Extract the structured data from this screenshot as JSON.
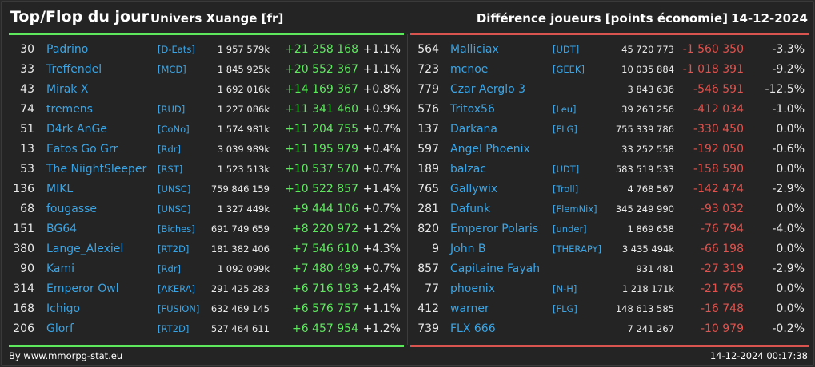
{
  "header": {
    "title": "Top/Flop du jour",
    "universe": "Univers Xuange [fr]",
    "metric": "Différence joueurs [points économie]",
    "date": "14-12-2024"
  },
  "colors": {
    "positive": "#5ee85e",
    "negative": "#e0524d",
    "link": "#3aa5e6"
  },
  "top": [
    {
      "rank": "30",
      "name": "Padrino",
      "alliance": "[D-Eats]",
      "points": "1 957 579k",
      "diff": "+21 258 168",
      "pct": "+1.1%"
    },
    {
      "rank": "33",
      "name": "Treffendel",
      "alliance": "[MCD]",
      "points": "1 845 925k",
      "diff": "+20 552 367",
      "pct": "+1.1%"
    },
    {
      "rank": "43",
      "name": "Mirak X",
      "alliance": "",
      "points": "1 692 016k",
      "diff": "+14 169 367",
      "pct": "+0.8%"
    },
    {
      "rank": "74",
      "name": "tremens",
      "alliance": "[RUD]",
      "points": "1 227 086k",
      "diff": "+11 341 460",
      "pct": "+0.9%"
    },
    {
      "rank": "51",
      "name": "D4rk AnGe",
      "alliance": "[CoNo]",
      "points": "1 574 981k",
      "diff": "+11 204 755",
      "pct": "+0.7%"
    },
    {
      "rank": "13",
      "name": "Eatos Go Grr",
      "alliance": "[Rdr]",
      "points": "3 039 989k",
      "diff": "+11 195 979",
      "pct": "+0.4%"
    },
    {
      "rank": "53",
      "name": "The NiightSleeper",
      "alliance": "[RST]",
      "points": "1 523 513k",
      "diff": "+10 537 570",
      "pct": "+0.7%"
    },
    {
      "rank": "136",
      "name": "MIKL",
      "alliance": "[UNSC]",
      "points": "759 846 159",
      "diff": "+10 522 857",
      "pct": "+1.4%"
    },
    {
      "rank": "68",
      "name": "fougasse",
      "alliance": "[UNSC]",
      "points": "1 327 449k",
      "diff": "+9 444 106",
      "pct": "+0.7%"
    },
    {
      "rank": "151",
      "name": "BG64",
      "alliance": "[Biches]",
      "points": "691 749 659",
      "diff": "+8 220 972",
      "pct": "+1.2%"
    },
    {
      "rank": "380",
      "name": "Lange_Alexiel",
      "alliance": "[RT2D]",
      "points": "181 382 406",
      "diff": "+7 546 610",
      "pct": "+4.3%"
    },
    {
      "rank": "90",
      "name": "Kami",
      "alliance": "[Rdr]",
      "points": "1 092 099k",
      "diff": "+7 480 499",
      "pct": "+0.7%"
    },
    {
      "rank": "314",
      "name": "Emperor Owl",
      "alliance": "[AKERA]",
      "points": "291 425 283",
      "diff": "+6 716 193",
      "pct": "+2.4%"
    },
    {
      "rank": "168",
      "name": "Ichigo",
      "alliance": "[FUSION]",
      "points": "632 469 145",
      "diff": "+6 576 757",
      "pct": "+1.1%"
    },
    {
      "rank": "206",
      "name": "Glorf",
      "alliance": "[RT2D]",
      "points": "527 464 611",
      "diff": "+6 457 954",
      "pct": "+1.2%"
    }
  ],
  "flop": [
    {
      "rank": "564",
      "name": "Malliciax",
      "alliance": "[UDT]",
      "points": "45 720 773",
      "diff": "-1 560 350",
      "pct": "-3.3%"
    },
    {
      "rank": "723",
      "name": "mcnoe",
      "alliance": "[GEEK]",
      "points": "10 035 884",
      "diff": "-1 018 391",
      "pct": "-9.2%"
    },
    {
      "rank": "779",
      "name": "Czar Aerglo 3",
      "alliance": "",
      "points": "3 843 636",
      "diff": "-546 591",
      "pct": "-12.5%"
    },
    {
      "rank": "576",
      "name": "Tritox56",
      "alliance": "[Leu]",
      "points": "39 263 256",
      "diff": "-412 034",
      "pct": "-1.0%"
    },
    {
      "rank": "137",
      "name": "Darkana",
      "alliance": "[FLG]",
      "points": "755 339 786",
      "diff": "-330 450",
      "pct": "0.0%"
    },
    {
      "rank": "597",
      "name": "Angel Phoenix",
      "alliance": "",
      "points": "33 252 558",
      "diff": "-192 050",
      "pct": "-0.6%"
    },
    {
      "rank": "189",
      "name": "balzac",
      "alliance": "[UDT]",
      "points": "583 519 533",
      "diff": "-158 590",
      "pct": "0.0%"
    },
    {
      "rank": "765",
      "name": "Gallywix",
      "alliance": "[Troll]",
      "points": "4 768 567",
      "diff": "-142 474",
      "pct": "-2.9%"
    },
    {
      "rank": "281",
      "name": "Dafunk",
      "alliance": "[FlemNix]",
      "points": "345 249 990",
      "diff": "-93 032",
      "pct": "0.0%"
    },
    {
      "rank": "820",
      "name": "Emperor Polaris",
      "alliance": "[under]",
      "points": "1 869 658",
      "diff": "-76 794",
      "pct": "-4.0%"
    },
    {
      "rank": "9",
      "name": "John B",
      "alliance": "[THERAPY]",
      "points": "3 435 494k",
      "diff": "-66 198",
      "pct": "0.0%"
    },
    {
      "rank": "857",
      "name": "Capitaine Fayah",
      "alliance": "",
      "points": "931 481",
      "diff": "-27 319",
      "pct": "-2.9%"
    },
    {
      "rank": "77",
      "name": "phoenix",
      "alliance": "[N-H]",
      "points": "1 218 171k",
      "diff": "-21 765",
      "pct": "0.0%"
    },
    {
      "rank": "412",
      "name": "warner",
      "alliance": "[FLG]",
      "points": "148 613 585",
      "diff": "-16 748",
      "pct": "0.0%"
    },
    {
      "rank": "739",
      "name": "FLX 666",
      "alliance": "",
      "points": "7 241 267",
      "diff": "-10 979",
      "pct": "-0.2%"
    }
  ],
  "footer": {
    "source": "By www.mmorpg-stat.eu",
    "timestamp": "14-12-2024 00:17:38"
  }
}
